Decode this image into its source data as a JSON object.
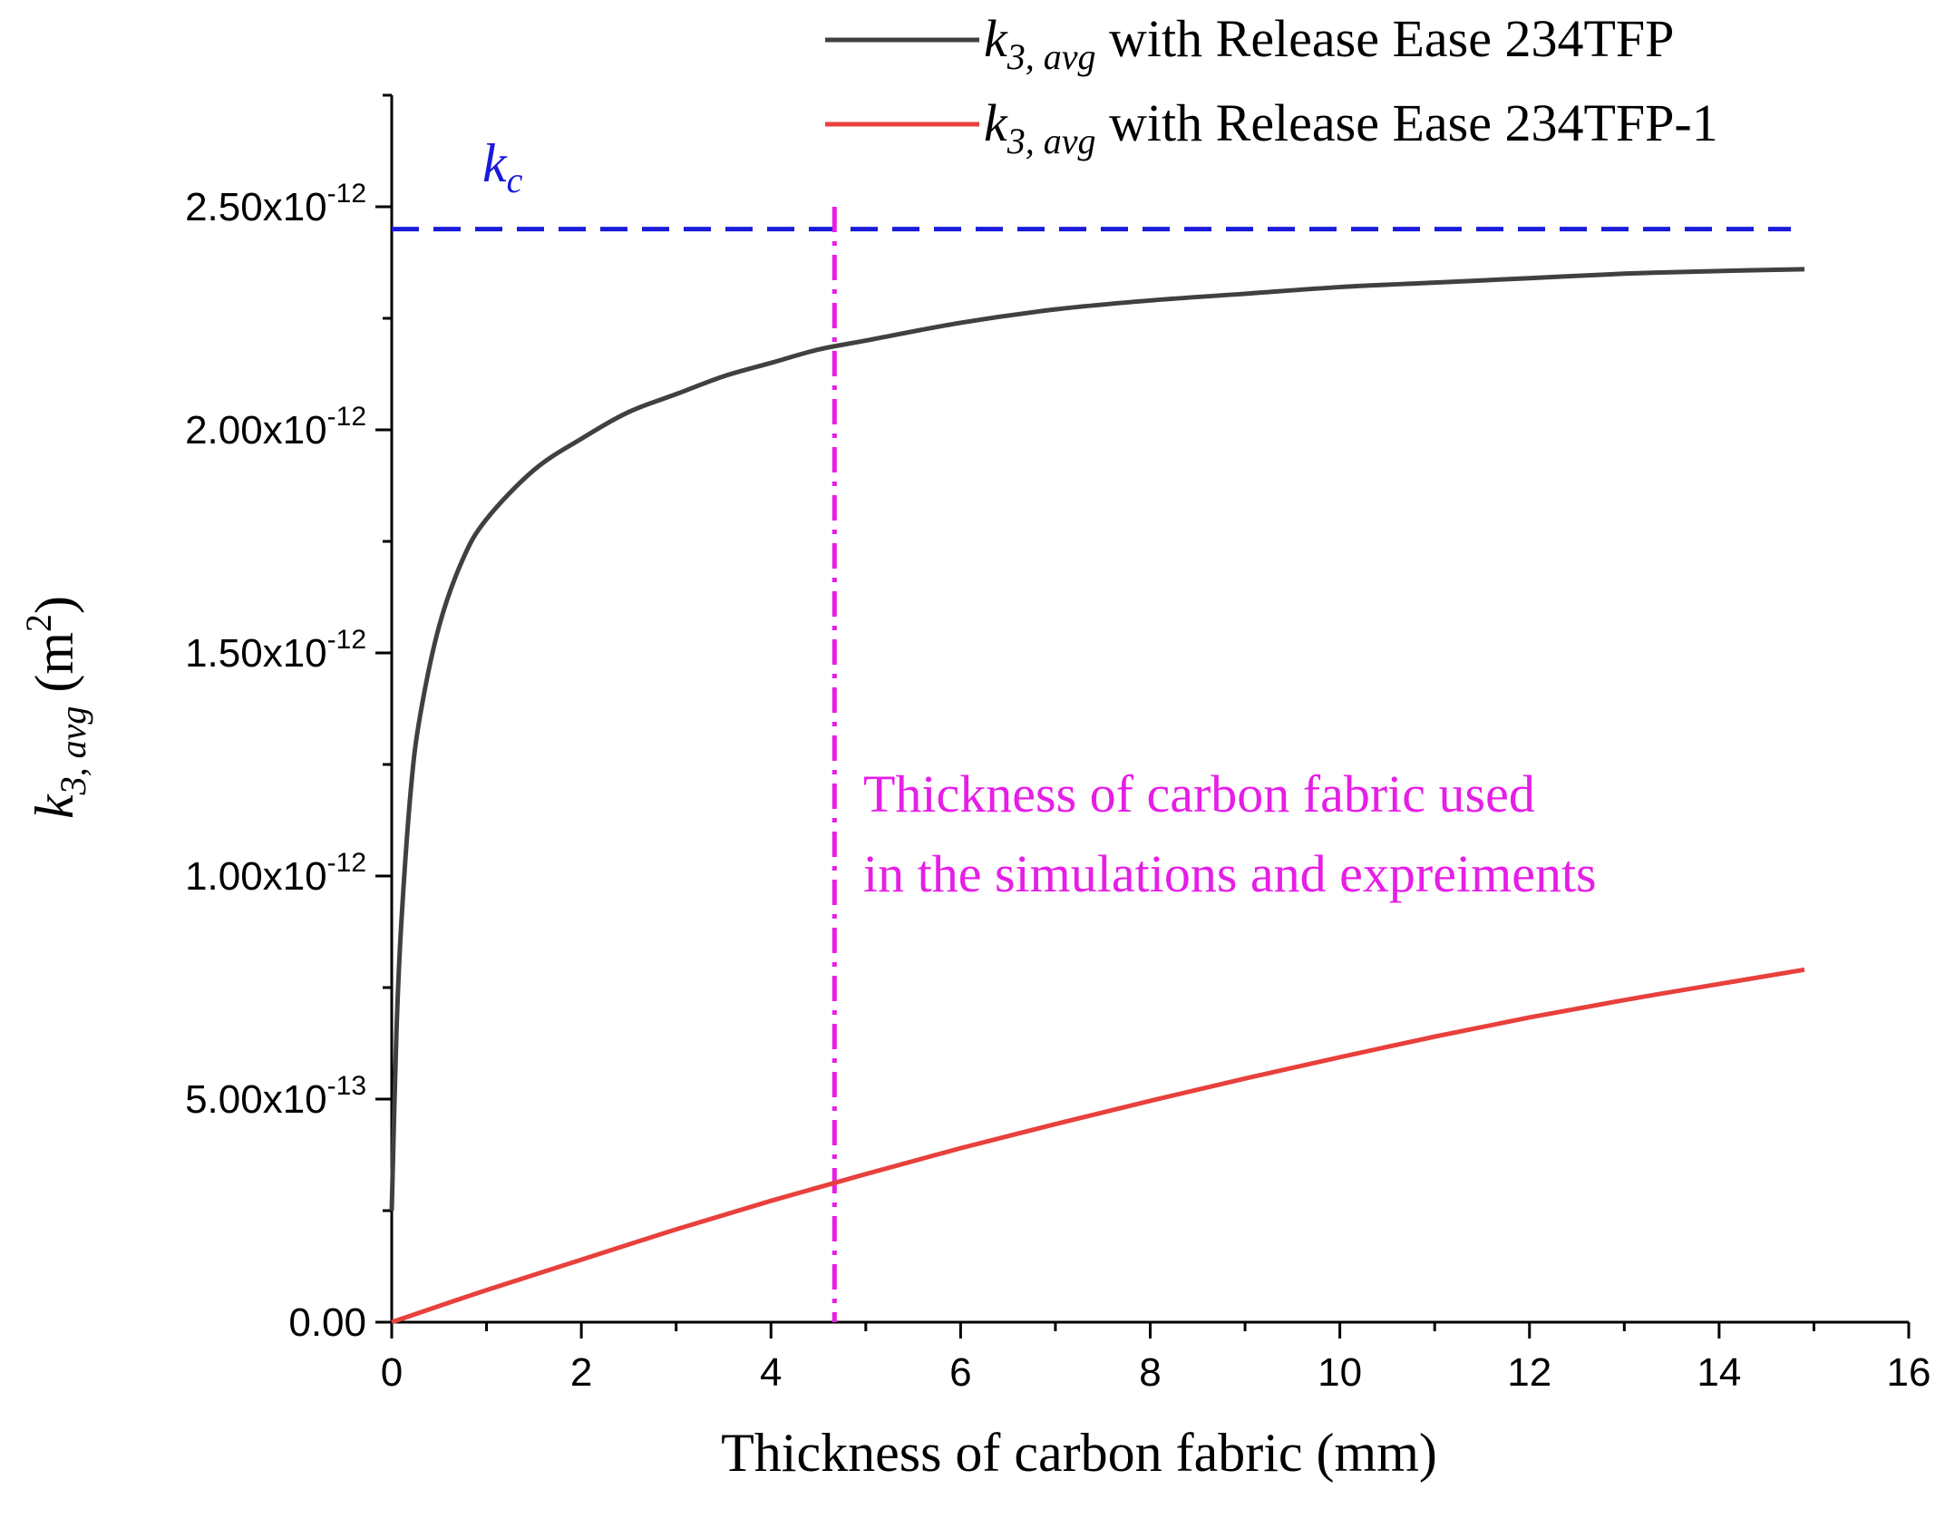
{
  "chart_data": {
    "type": "line",
    "xlabel": "Thickness of carbon fabric (mm)",
    "ylabel": {
      "symbol": "k",
      "subscript": "3, avg",
      "unit_open": " (m",
      "unit_sup": "2",
      "unit_close": ")"
    },
    "xlim": [
      0,
      16
    ],
    "ylim": [
      0,
      2.75e-12
    ],
    "x_ticks": [
      0,
      2,
      4,
      6,
      8,
      10,
      12,
      14,
      16
    ],
    "x_tick_labels": [
      "0",
      "2",
      "4",
      "6",
      "8",
      "10",
      "12",
      "14",
      "16"
    ],
    "y_ticks": [
      0,
      5e-13,
      1e-12,
      1.5e-12,
      2e-12,
      2.5e-12
    ],
    "y_tick_labels": [
      {
        "mantissa": "0.00",
        "exponent": ""
      },
      {
        "mantissa": "5.00x10",
        "exponent": "-13"
      },
      {
        "mantissa": "1.00x10",
        "exponent": "-12"
      },
      {
        "mantissa": "1.50x10",
        "exponent": "-12"
      },
      {
        "mantissa": "2.00x10",
        "exponent": "-12"
      },
      {
        "mantissa": "2.50x10",
        "exponent": "-12"
      }
    ],
    "grid": false,
    "legend_position": "top-right",
    "series": [
      {
        "name": "k3, avg with Release Ease 234TFP",
        "legend_symbol": "k",
        "legend_subscript": "3, avg",
        "legend_text": " with Release Ease 234TFP",
        "color": "#404040",
        "x": [
          0,
          0.05,
          0.1,
          0.2,
          0.3,
          0.5,
          0.75,
          1,
          1.5,
          2,
          2.5,
          3,
          3.5,
          4,
          4.5,
          5,
          6,
          7,
          8,
          9,
          10,
          11,
          12,
          13,
          14,
          14.9
        ],
        "y": [
          2.5e-13,
          6.5e-13,
          8.9e-13,
          1.19e-12,
          1.36e-12,
          1.56e-12,
          1.71e-12,
          1.8e-12,
          1.91e-12,
          1.98e-12,
          2.04e-12,
          2.08e-12,
          2.12e-12,
          2.15e-12,
          2.18e-12,
          2.2e-12,
          2.24e-12,
          2.27e-12,
          2.29e-12,
          2.305e-12,
          2.32e-12,
          2.33e-12,
          2.34e-12,
          2.35e-12,
          2.356e-12,
          2.36e-12
        ]
      },
      {
        "name": "k3, avg with Release Ease 234TFP-1",
        "legend_symbol": "k",
        "legend_subscript": "3, avg",
        "legend_text": " with Release Ease 234TFP-1",
        "color": "#e8403c",
        "x": [
          0,
          1,
          2,
          3,
          4,
          5,
          6,
          7,
          8,
          9,
          10,
          11,
          12,
          13,
          14,
          14.9
        ],
        "y": [
          0,
          7.2e-14,
          1.4e-13,
          2.08e-13,
          2.72e-13,
          3.32e-13,
          3.9e-13,
          4.44e-13,
          4.96e-13,
          5.46e-13,
          5.94e-13,
          6.4e-13,
          6.83e-13,
          7.22e-13,
          7.58e-13,
          7.9e-13
        ]
      }
    ],
    "reference_lines": [
      {
        "orientation": "horizontal",
        "value": 2.45e-12,
        "color": "#1a1adb",
        "style": "dashed",
        "label_symbol": "k",
        "label_subscript": "c"
      },
      {
        "orientation": "vertical",
        "value": 4.67,
        "color": "#e61ee6",
        "style": "dash-dot"
      }
    ],
    "annotation": {
      "lines": [
        "Thickness of carbon fabric used",
        "in the simulations and expreiments"
      ],
      "color": "#e61ee6"
    }
  }
}
